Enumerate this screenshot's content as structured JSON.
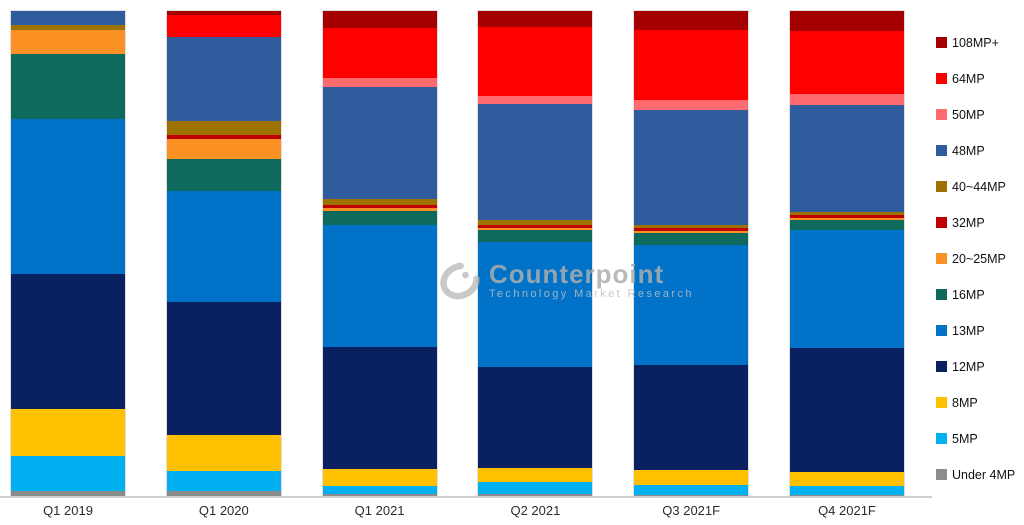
{
  "watermark": {
    "brand": "Counterpoint",
    "tagline": "Technology Market Research"
  },
  "chart_data": {
    "type": "bar",
    "variant": "stacked-100-percent",
    "title": "",
    "xlabel": "",
    "ylabel": "",
    "unit": "percent share",
    "ylim": [
      0,
      100
    ],
    "grid": false,
    "legend_position": "right",
    "categories": [
      "Q1 2019",
      "Q1 2020",
      "Q1 2021",
      "Q2 2021",
      "Q3 2021F",
      "Q4 2021F"
    ],
    "series": [
      {
        "name": "108MP+",
        "color": "#A40000",
        "values": [
          0,
          0.8,
          3.5,
          3.3,
          3.9,
          4.1
        ]
      },
      {
        "name": "64MP",
        "color": "#FF0000",
        "values": [
          0,
          4.5,
          10.4,
          14.3,
          14.4,
          13.1
        ]
      },
      {
        "name": "50MP",
        "color": "#FF6B6E",
        "values": [
          0,
          0,
          1.8,
          1.6,
          2.1,
          2.1
        ]
      },
      {
        "name": "48MP",
        "color": "#2E5C9C",
        "values": [
          2.9,
          17.3,
          23.1,
          23.9,
          23.7,
          22.1
        ]
      },
      {
        "name": "40~44MP",
        "color": "#9E7200",
        "values": [
          1.0,
          2.9,
          1.2,
          1.0,
          0.6,
          0.6
        ]
      },
      {
        "name": "32MP",
        "color": "#C00000",
        "values": [
          0,
          0.8,
          0.6,
          0.6,
          0.6,
          0.6
        ]
      },
      {
        "name": "20~25MP",
        "color": "#FB9123",
        "values": [
          5.0,
          4.3,
          0.6,
          0.4,
          0.4,
          0.4
        ]
      },
      {
        "name": "16MP",
        "color": "#0F6A5E",
        "values": [
          13.4,
          6.6,
          2.9,
          2.5,
          2.5,
          2.1
        ]
      },
      {
        "name": "13MP",
        "color": "#0072C8",
        "values": [
          32.0,
          22.9,
          25.2,
          25.8,
          24.8,
          24.5
        ]
      },
      {
        "name": "12MP",
        "color": "#0A2161",
        "values": [
          27.8,
          27.4,
          25.2,
          20.8,
          21.6,
          25.4
        ]
      },
      {
        "name": "8MP",
        "color": "#FFC000",
        "values": [
          9.7,
          7.4,
          3.5,
          2.9,
          3.1,
          2.9
        ]
      },
      {
        "name": "5MP",
        "color": "#00B0F0",
        "values": [
          7.2,
          4.1,
          1.6,
          2.5,
          2.1,
          1.9
        ]
      },
      {
        "name": "Under 4MP",
        "color": "#8C8C8C",
        "values": [
          1.0,
          1.0,
          0.4,
          0.4,
          0.2,
          0.2
        ]
      }
    ]
  }
}
